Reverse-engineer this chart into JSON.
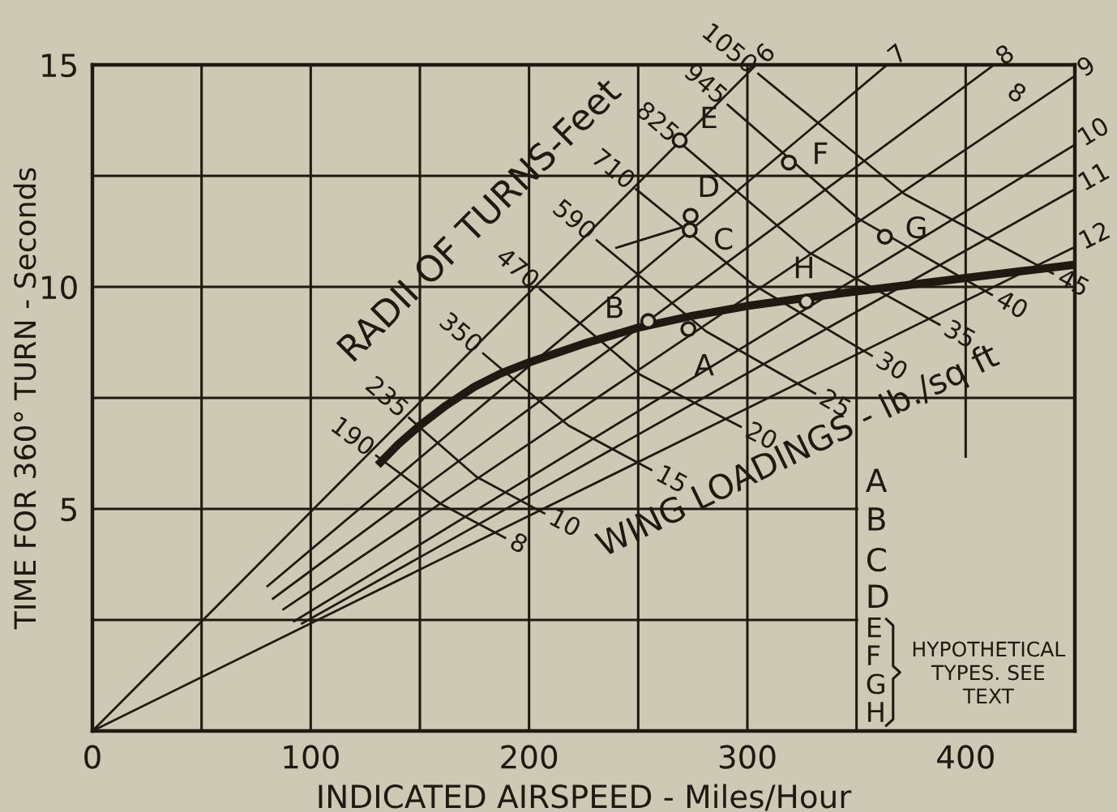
{
  "chart_data": {
    "type": "line",
    "xlabel": "INDICATED AIRSPEED - Miles/Hour",
    "ylabel": "TIME FOR 360° TURN - Seconds",
    "xlim": [
      0,
      450
    ],
    "ylim": [
      0,
      15
    ],
    "xticks": [
      0,
      {
        "value": 50,
        "label": null
      },
      100,
      {
        "value": 150,
        "label": null
      },
      200,
      {
        "value": 250,
        "label": null
      },
      300,
      {
        "value": 350,
        "label": null
      },
      400
    ],
    "yticks": [
      {
        "value": 0,
        "label": null
      },
      {
        "value": 2.5,
        "label": null
      },
      5,
      {
        "value": 7.5,
        "label": null
      },
      10,
      {
        "value": 12.5,
        "label": null
      },
      15
    ],
    "grid": true,
    "series": [
      {
        "color": "#1e1a12",
        "x": [
          132,
          140,
          150,
          162,
          175,
          187,
          200,
          225,
          250,
          275,
          300,
          325,
          350,
          375,
          400,
          425,
          450
        ],
        "values": [
          6.05,
          6.45,
          6.88,
          7.33,
          7.75,
          8.05,
          8.3,
          8.72,
          9.08,
          9.35,
          9.57,
          9.74,
          9.9,
          10.05,
          10.2,
          10.35,
          10.5
        ]
      },
      {
        "name": "190",
        "color": "#1e1a12",
        "x": [
          130,
          160,
          189
        ],
        "values": [
          6.2,
          5.1,
          4.35
        ]
      },
      {
        "name": "235",
        "color": "#1e1a12",
        "x": [
          145,
          176,
          207
        ],
        "values": [
          7.05,
          5.72,
          4.9
        ]
      },
      {
        "name": "350",
        "color": "#1e1a12",
        "x": [
          179,
          218,
          256
        ],
        "values": [
          8.5,
          6.88,
          5.88
        ]
      },
      {
        "name": "470",
        "color": "#1e1a12",
        "x": [
          205,
          251,
          297
        ],
        "values": [
          9.95,
          8.02,
          6.85
        ]
      },
      {
        "name": "590",
        "color": "#1e1a12",
        "x": [
          231,
          281,
          331
        ],
        "values": [
          11.05,
          9.0,
          7.6
        ]
      },
      {
        "name": "710",
        "color": "#1e1a12",
        "x": [
          249,
          303,
          357
        ],
        "values": [
          12.2,
          10.04,
          8.45
        ]
      },
      {
        "name": "825",
        "color": "#1e1a12",
        "x": [
          269,
          328,
          388
        ],
        "values": [
          13.25,
          10.78,
          9.15
        ]
      },
      {
        "name": "945",
        "color": "#1e1a12",
        "x": [
          291,
          351,
          412
        ],
        "values": [
          14.1,
          11.53,
          9.82
        ]
      },
      {
        "name": "1050",
        "color": "#1e1a12",
        "x": [
          305,
          372,
          440
        ],
        "values": [
          14.8,
          12.09,
          10.3
        ]
      },
      {
        "name": "6",
        "color": "#1e1a12",
        "x": [
          0,
          304
        ],
        "values": [
          0,
          15
        ]
      },
      {
        "name": "7",
        "color": "#1e1a12",
        "x": [
          80.2,
          364
        ],
        "values": [
          3.26,
          15
        ]
      },
      {
        "name": "8",
        "color": "#1e1a12",
        "x": [
          82.7,
          413
        ],
        "values": [
          2.98,
          15
        ]
      },
      {
        "name": "9",
        "color": "#1e1a12",
        "x": [
          87.5,
          450
        ],
        "values": [
          2.74,
          14.75
        ]
      },
      {
        "name": "10",
        "color": "#1e1a12",
        "x": [
          92.4,
          450
        ],
        "values": [
          2.47,
          13.2
        ]
      },
      {
        "name": "11",
        "color": "#1e1a12",
        "x": [
          96,
          450
        ],
        "values": [
          2.42,
          12.2
        ]
      },
      {
        "name": "12",
        "color": "#1e1a12",
        "x": [
          0,
          450
        ],
        "values": [
          0,
          10.9
        ]
      },
      {
        "color": "#1e1a12",
        "x": [
          240,
          270.7
        ],
        "values": [
          10.88,
          11.35
        ]
      },
      {
        "type": "scatter",
        "marker": "circle",
        "color": "#1e1a12",
        "x": [
          273,
          254.6,
          273.6,
          274,
          269,
          319,
          363,
          327
        ],
        "values": [
          9.05,
          9.23,
          11.28,
          11.6,
          13.3,
          12.8,
          11.13,
          9.67
        ],
        "value_labels": [
          "A",
          "B",
          "C",
          "D",
          "E",
          "F",
          "G",
          "H"
        ]
      }
    ],
    "annotations": [
      "8",
      "10",
      "15",
      "20",
      "25",
      "30",
      "35",
      "40",
      "45",
      "8",
      "RADII OF TURNS-Feet",
      "WING LOADINGS - lb./sq ft",
      "A",
      "B",
      "C",
      "D",
      "E",
      "F",
      "G",
      "H",
      "HYPOTHETICAL\nTYPES. SEE\nTEXT"
    ]
  }
}
